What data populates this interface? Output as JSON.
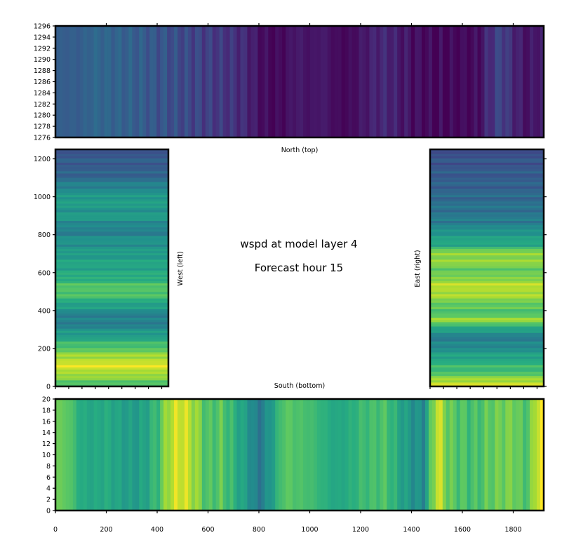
{
  "chart_data": [
    {
      "type": "heatmap",
      "panel": "north",
      "xlabel": "North (top)",
      "xlim": [
        0,
        1920
      ],
      "ylim": [
        1276,
        1296
      ],
      "y_ticks": [
        1276,
        1278,
        1280,
        1282,
        1284,
        1286,
        1288,
        1290,
        1292,
        1294,
        1296
      ],
      "x_tick_marks": [
        200,
        400,
        600,
        800,
        1000,
        1200,
        1400,
        1600,
        1800
      ],
      "colormap": "viridis",
      "color_range": [
        0,
        1
      ],
      "profile_x": [
        0,
        100,
        150,
        200,
        250,
        300,
        350,
        400,
        450,
        500,
        550,
        600,
        650,
        700,
        750,
        800,
        850,
        900,
        950,
        1000,
        1050,
        1100,
        1150,
        1200,
        1250,
        1300,
        1350,
        1400,
        1450,
        1500,
        1550,
        1600,
        1650,
        1700,
        1750,
        1800,
        1850,
        1900,
        1920
      ],
      "profile_values": [
        0.3,
        0.3,
        0.34,
        0.33,
        0.32,
        0.31,
        0.29,
        0.27,
        0.25,
        0.23,
        0.21,
        0.19,
        0.17,
        0.15,
        0.12,
        0.05,
        0.02,
        0.03,
        0.08,
        0.05,
        0.08,
        0.03,
        0.02,
        0.06,
        0.1,
        0.12,
        0.08,
        0.05,
        0.02,
        0.02,
        0.01,
        0.01,
        0.02,
        0.12,
        0.22,
        0.12,
        0.05,
        0.08,
        0.08
      ]
    },
    {
      "type": "heatmap",
      "panel": "west",
      "xlabel": "West (left)",
      "xlim": [
        0,
        450
      ],
      "ylim": [
        0,
        1250
      ],
      "y_ticks": [
        0,
        200,
        400,
        600,
        800,
        1000,
        1200
      ],
      "colormap": "viridis",
      "color_range": [
        0,
        1
      ],
      "profile_y": [
        0,
        50,
        100,
        140,
        180,
        220,
        260,
        300,
        340,
        380,
        420,
        460,
        500,
        540,
        580,
        620,
        660,
        700,
        740,
        780,
        820,
        860,
        900,
        940,
        980,
        1020,
        1060,
        1100,
        1140,
        1180,
        1220,
        1250
      ],
      "profile_values": [
        0.7,
        0.82,
        0.95,
        0.92,
        0.8,
        0.7,
        0.58,
        0.5,
        0.42,
        0.45,
        0.55,
        0.65,
        0.75,
        0.7,
        0.62,
        0.6,
        0.58,
        0.55,
        0.52,
        0.5,
        0.42,
        0.48,
        0.55,
        0.52,
        0.58,
        0.5,
        0.45,
        0.35,
        0.3,
        0.3,
        0.28,
        0.28
      ]
    },
    {
      "type": "heatmap",
      "panel": "east",
      "xlabel": "East (right)",
      "xlim": [
        0,
        450
      ],
      "ylim": [
        0,
        1250
      ],
      "y_ticks": [
        0,
        200,
        400,
        600,
        800,
        1000,
        1200
      ],
      "colormap": "viridis",
      "color_range": [
        0,
        1
      ],
      "profile_y": [
        0,
        30,
        60,
        100,
        150,
        200,
        250,
        300,
        350,
        400,
        450,
        500,
        550,
        600,
        650,
        700,
        750,
        800,
        850,
        900,
        950,
        1000,
        1050,
        1100,
        1150,
        1200,
        1250
      ],
      "profile_values": [
        0.98,
        0.9,
        0.75,
        0.68,
        0.6,
        0.5,
        0.42,
        0.55,
        0.85,
        0.7,
        0.8,
        0.9,
        0.88,
        0.75,
        0.82,
        0.85,
        0.6,
        0.55,
        0.45,
        0.4,
        0.38,
        0.35,
        0.32,
        0.3,
        0.28,
        0.26,
        0.25
      ]
    },
    {
      "type": "heatmap",
      "panel": "south",
      "xlabel": "South (bottom)",
      "xlim": [
        0,
        1920
      ],
      "ylim": [
        0,
        20
      ],
      "x_ticks": [
        0,
        200,
        400,
        600,
        800,
        1000,
        1200,
        1400,
        1600,
        1800
      ],
      "y_ticks": [
        0,
        2,
        4,
        6,
        8,
        10,
        12,
        14,
        16,
        18,
        20
      ],
      "colormap": "viridis",
      "color_range": [
        0,
        1
      ],
      "profile_x": [
        0,
        50,
        100,
        150,
        200,
        250,
        300,
        350,
        400,
        450,
        500,
        550,
        600,
        650,
        700,
        750,
        800,
        850,
        900,
        950,
        1000,
        1050,
        1100,
        1150,
        1200,
        1250,
        1300,
        1350,
        1400,
        1450,
        1500,
        1550,
        1600,
        1650,
        1700,
        1750,
        1800,
        1850,
        1900,
        1920
      ],
      "profile_values": [
        0.78,
        0.75,
        0.62,
        0.6,
        0.62,
        0.58,
        0.55,
        0.58,
        0.68,
        0.9,
        0.95,
        0.85,
        0.7,
        0.75,
        0.65,
        0.55,
        0.4,
        0.55,
        0.75,
        0.72,
        0.7,
        0.65,
        0.6,
        0.62,
        0.68,
        0.7,
        0.72,
        0.6,
        0.52,
        0.48,
        0.95,
        0.75,
        0.72,
        0.7,
        0.75,
        0.78,
        0.8,
        0.7,
        0.95,
        1.0
      ]
    }
  ],
  "title": {
    "line1": "wspd at model layer 4",
    "line2": "Forecast hour 15"
  }
}
